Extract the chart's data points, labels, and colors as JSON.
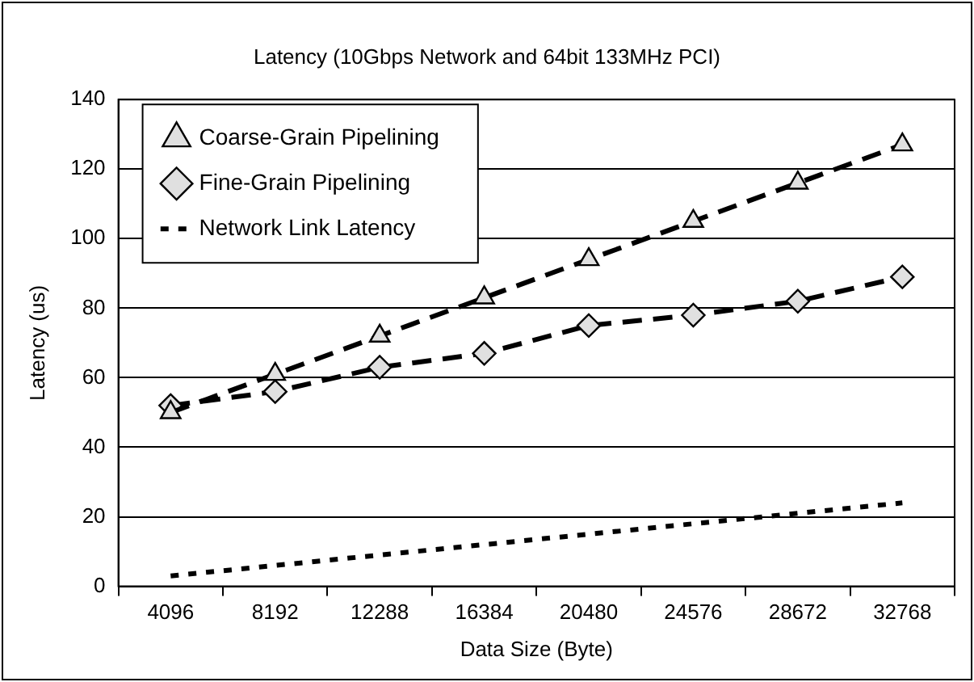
{
  "chart_data": {
    "type": "line",
    "title": "Latency (10Gbps Network and 64bit 133MHz PCI)",
    "xlabel": "Data Size (Byte)",
    "ylabel": "Latency (us)",
    "categories": [
      "4096",
      "8192",
      "12288",
      "16384",
      "20480",
      "24576",
      "28672",
      "32768"
    ],
    "series": [
      {
        "name": "Coarse-Grain Pipelining",
        "color": "#000000",
        "marker": "triangle",
        "line_style": "dashed",
        "values": [
          50,
          61,
          72,
          83,
          94,
          105,
          116,
          127
        ]
      },
      {
        "name": "Fine-Grain Pipelining",
        "color": "#000000",
        "marker": "diamond",
        "line_style": "dashed",
        "values": [
          52,
          56,
          63,
          67,
          75,
          78,
          82,
          89
        ]
      },
      {
        "name": "Network Link Latency",
        "color": "#000000",
        "marker": "none",
        "line_style": "dotted",
        "values": [
          3,
          6,
          9,
          12,
          15,
          18,
          21,
          24
        ]
      }
    ],
    "ylim": [
      0,
      140
    ],
    "yticks": [
      0,
      20,
      40,
      60,
      80,
      100,
      120,
      140
    ],
    "grid": "y",
    "legend": "top left"
  }
}
